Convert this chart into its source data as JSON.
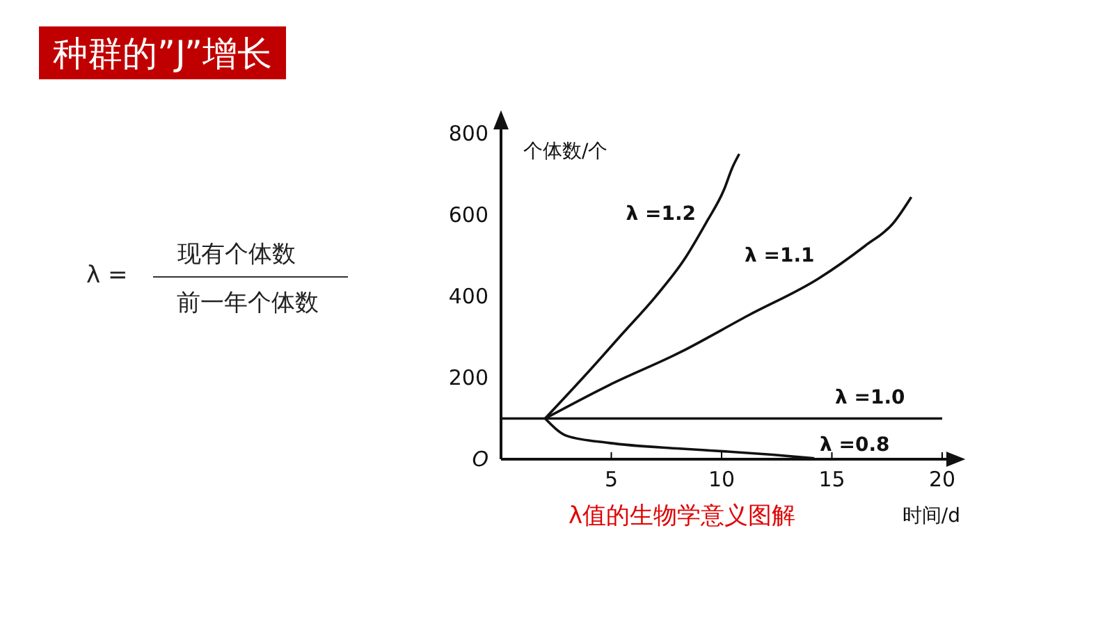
{
  "chart_data": {
    "type": "line",
    "title": "种群的”J”增长",
    "xlabel": "时间/d",
    "ylabel": "个体数/个",
    "annotations": [
      "λ =",
      "现有个体数",
      "前一年个体数",
      "λ值的生物学意义图解"
    ],
    "xlim": [
      0,
      20
    ],
    "ylim": [
      0,
      800
    ],
    "xticks": [
      5,
      10,
      15,
      20
    ],
    "yticks": [
      {
        "value": 0,
        "label": "O"
      },
      200,
      400,
      600,
      800
    ],
    "grid": false,
    "legend": false,
    "marker": "none",
    "line_style": "solid",
    "series": [
      {
        "name": "λ =1.2",
        "color": "#111111",
        "x": [
          2,
          3.8,
          5.5,
          7.0,
          8.3,
          9.3,
          10.1,
          10.5,
          10.8
        ],
        "values": [
          100,
          205,
          308,
          399,
          490,
          581,
          661,
          718,
          750
        ]
      },
      {
        "name": "λ =1.1",
        "color": "#111111",
        "x": [
          2,
          4.9,
          8.1,
          11.2,
          14.4,
          16.5,
          17.8,
          18.6
        ],
        "values": [
          100,
          182,
          262,
          353,
          444,
          524,
          581,
          644
        ]
      },
      {
        "name": "λ =1.0",
        "color": "#111111",
        "x": [
          0,
          20
        ],
        "values": [
          100,
          100
        ]
      },
      {
        "name": "λ =0.8",
        "color": "#111111",
        "x": [
          2,
          3,
          4.9,
          8.1,
          10.2,
          12.3,
          14.2
        ],
        "values": [
          100,
          57,
          40,
          26,
          19,
          11,
          2
        ]
      }
    ]
  }
}
